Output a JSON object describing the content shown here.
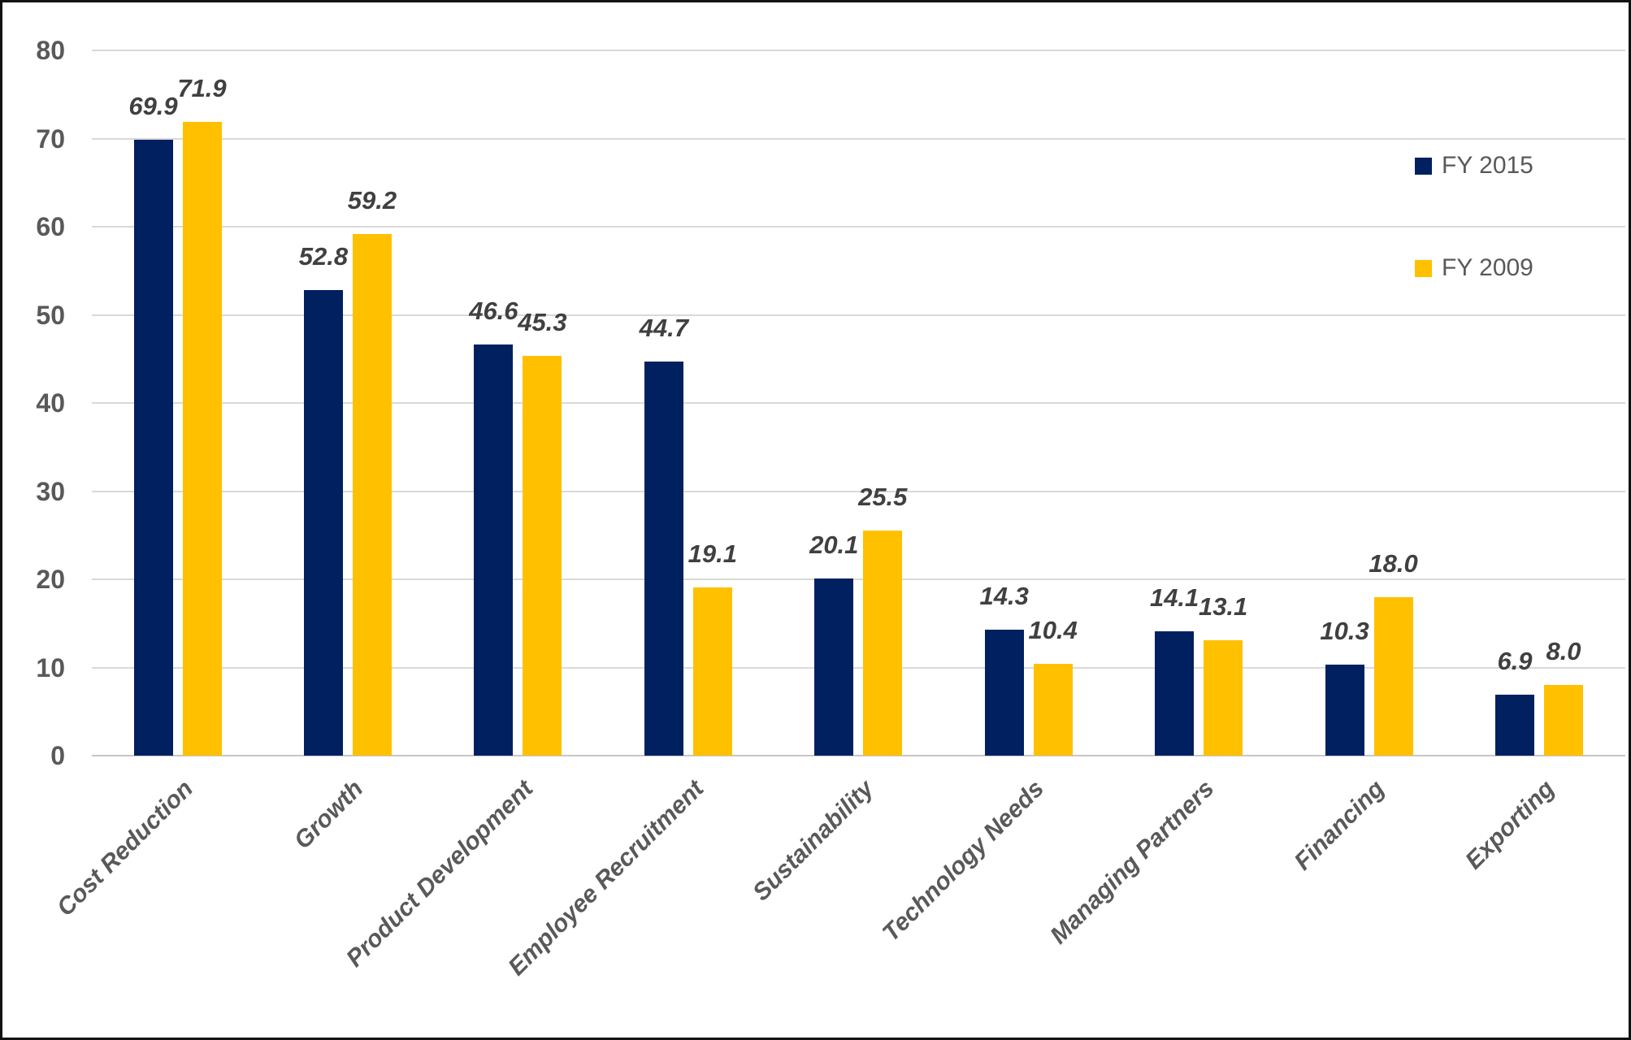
{
  "chart_data": {
    "type": "bar",
    "title": "",
    "xlabel": "",
    "ylabel": "",
    "categories": [
      "Cost Reduction",
      "Growth",
      "Product Development",
      "Employee Recruitment",
      "Sustainability",
      "Technology Needs",
      "Managing Partners",
      "Financing",
      "Exporting"
    ],
    "series": [
      {
        "name": "FY 2015",
        "color": "#002060",
        "values": [
          69.9,
          52.8,
          46.6,
          44.7,
          20.1,
          14.3,
          14.1,
          10.3,
          6.9
        ]
      },
      {
        "name": "FY 2009",
        "color": "#FFC000",
        "values": [
          71.9,
          59.2,
          45.3,
          19.1,
          25.5,
          10.4,
          13.1,
          18.0,
          8.0
        ]
      }
    ],
    "ylim": [
      0,
      80
    ],
    "yticks": [
      0,
      10,
      20,
      30,
      40,
      50,
      60,
      70,
      80
    ],
    "value_label_decimals": 1,
    "grid": true,
    "legend_position": "right",
    "colors": {
      "gridline": "#d9d9d9",
      "axis_text": "#595959",
      "data_label_text": "#404040",
      "category_text": "#595959",
      "legend_text": "#595959",
      "background": "#ffffff",
      "border": "#111111"
    }
  }
}
